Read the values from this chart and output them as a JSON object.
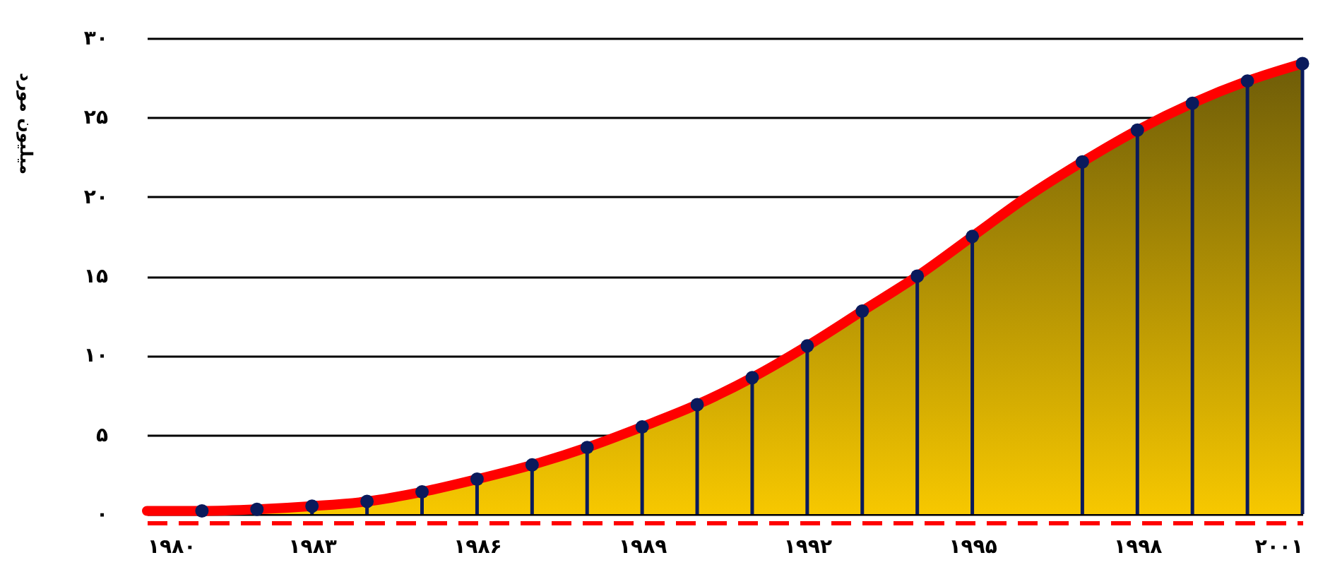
{
  "chart_data": {
    "type": "area",
    "ylabel": "میلیون مورد",
    "x": [
      1980,
      1981,
      1982,
      1983,
      1984,
      1985,
      1986,
      1987,
      1988,
      1989,
      1990,
      1991,
      1992,
      1993,
      1994,
      1995,
      1996,
      1997,
      1998,
      1999,
      2000,
      2001
    ],
    "series": [
      {
        "color": "#ff0000",
        "values": [
          0.2,
          0.2,
          0.3,
          0.5,
          0.8,
          1.4,
          2.2,
          3.1,
          4.2,
          5.5,
          6.9,
          8.6,
          10.6,
          12.8,
          15.0,
          17.5,
          20.0,
          22.2,
          24.2,
          25.9,
          27.3,
          28.4
        ]
      },
      {
        "type": "lollipop",
        "marker": "circle",
        "color": "#0a1a5c",
        "values": [
          null,
          0.2,
          0.3,
          0.5,
          0.8,
          1.4,
          2.2,
          3.1,
          4.2,
          5.5,
          6.9,
          8.6,
          10.6,
          12.8,
          15.0,
          17.5,
          null,
          22.2,
          24.2,
          25.9,
          27.3,
          28.4
        ]
      }
    ],
    "xlim": [
      1980,
      2001
    ],
    "xticks": [
      {
        "value": 1980,
        "label": "۱۹۸۰"
      },
      {
        "value": 1983,
        "label": "۱۹۸۳"
      },
      {
        "value": 1986,
        "label": "۱۹۸۶"
      },
      {
        "value": 1989,
        "label": "۱۹۸۹"
      },
      {
        "value": 1992,
        "label": "۱۹۹۲"
      },
      {
        "value": 1995,
        "label": "۱۹۹۵"
      },
      {
        "value": 1998,
        "label": "۱۹۹۸"
      },
      {
        "value": 2001,
        "label": "۲۰۰۱"
      }
    ],
    "ylim": [
      0,
      30
    ],
    "yticks": [
      {
        "value": 0,
        "label": "۰"
      },
      {
        "value": 5,
        "label": "۵"
      },
      {
        "value": 10,
        "label": "۱۰"
      },
      {
        "value": 15,
        "label": "۱۵"
      },
      {
        "value": 20,
        "label": "۲۰"
      },
      {
        "value": 25,
        "label": "۲۵"
      },
      {
        "value": 30,
        "label": "۳۰"
      }
    ],
    "grid": "y"
  }
}
